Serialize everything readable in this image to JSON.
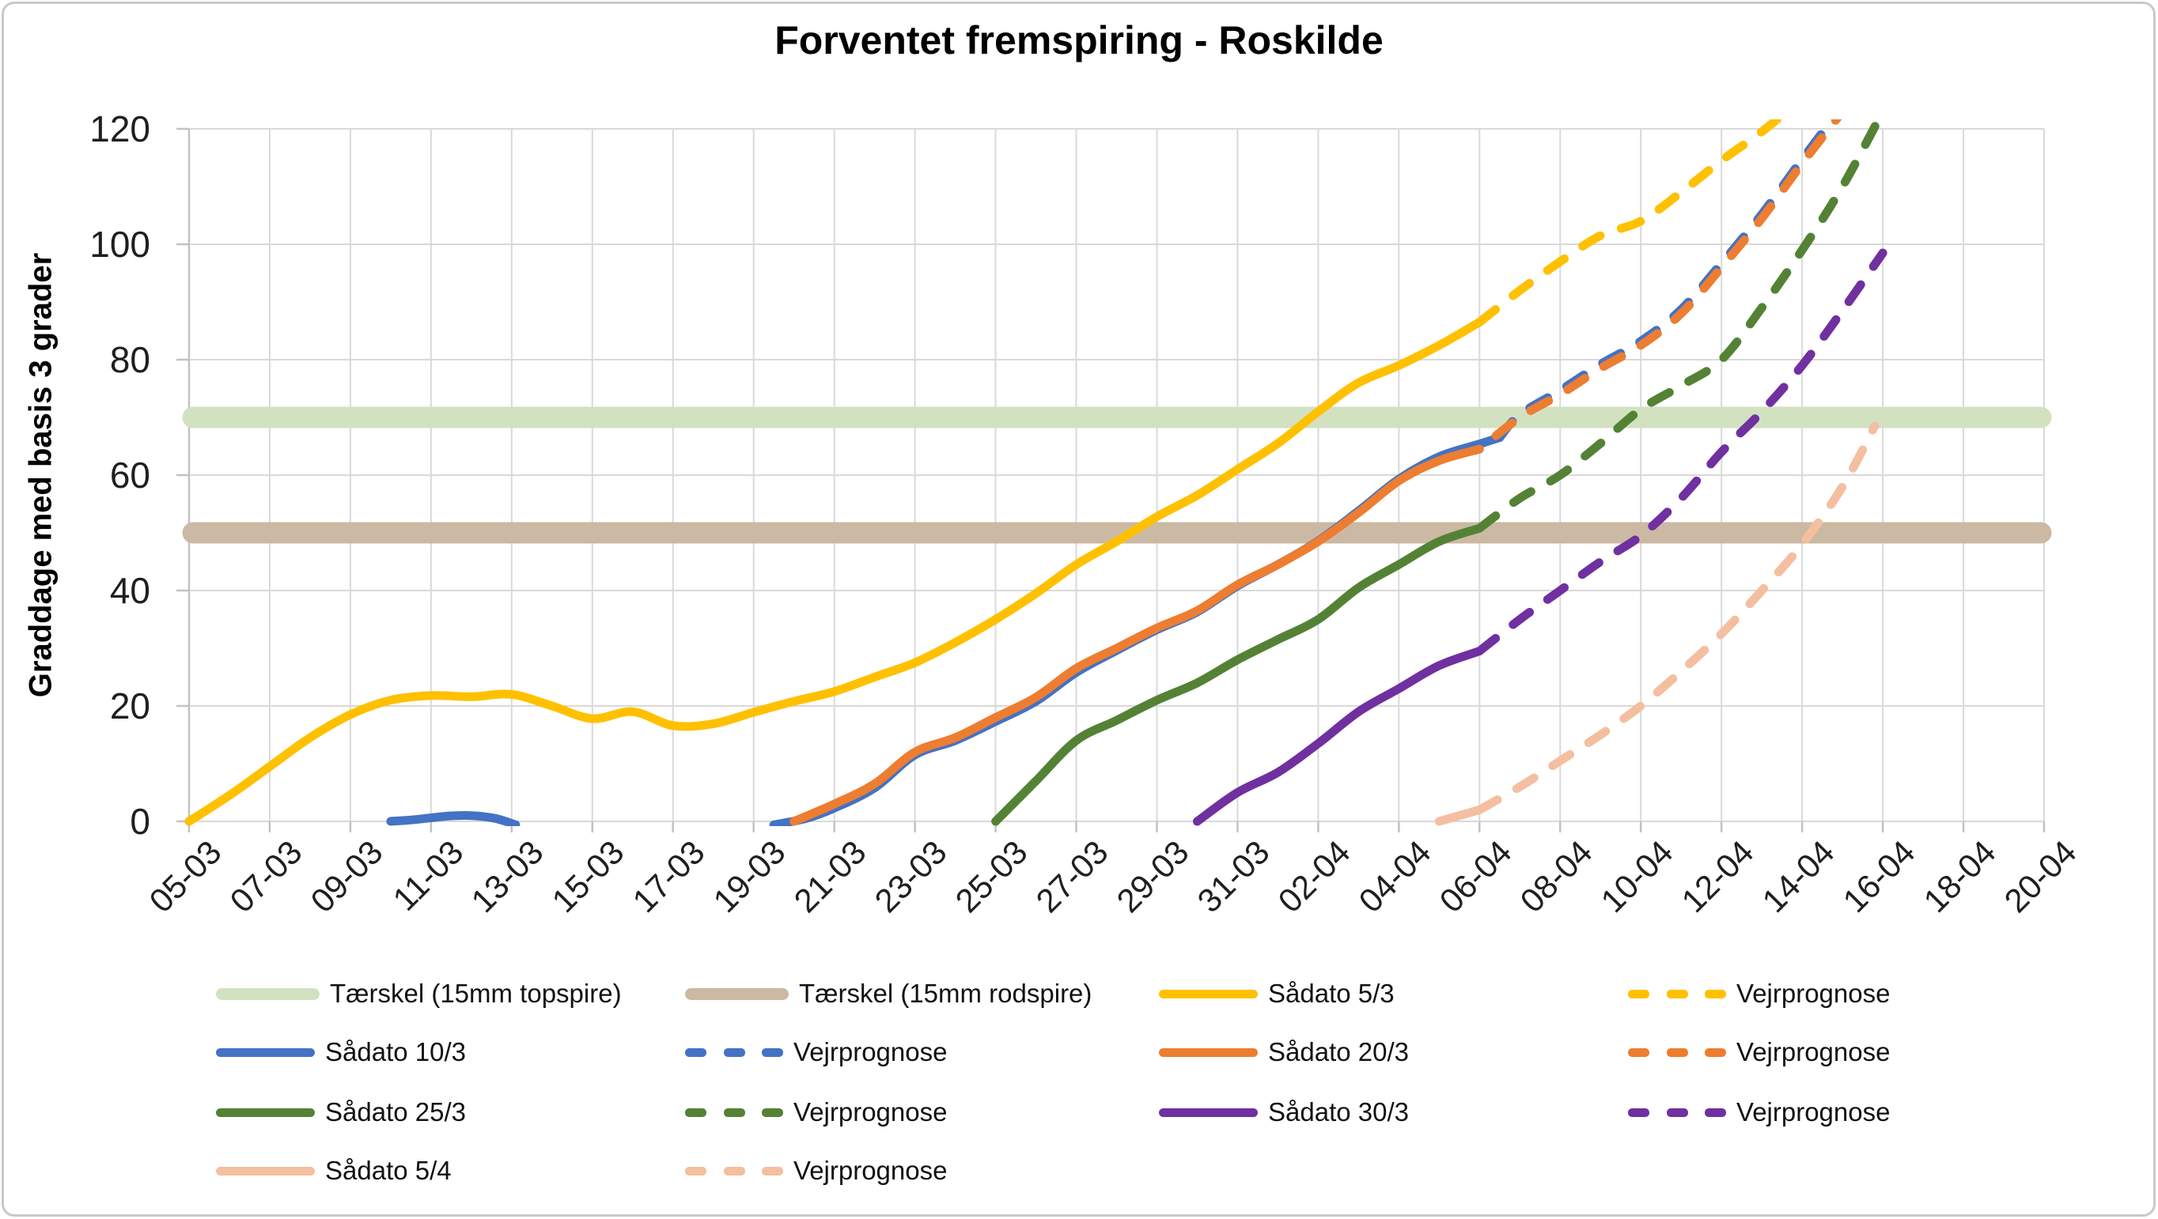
{
  "chart_data": {
    "type": "line",
    "title": "Forventet fremspiring - Roskilde",
    "ylabel": "Graddage med basis 3 grader",
    "ylim": [
      0,
      120
    ],
    "ytick_step": 20,
    "ytick_labels": [
      "0",
      "20",
      "40",
      "60",
      "80",
      "100",
      "120"
    ],
    "x_days_total": 46,
    "xtick_every_days": 2,
    "xtick_labels": [
      "05-03",
      "07-03",
      "09-03",
      "11-03",
      "13-03",
      "15-03",
      "17-03",
      "19-03",
      "21-03",
      "23-03",
      "25-03",
      "27-03",
      "29-03",
      "31-03",
      "02-04",
      "04-04",
      "06-04",
      "08-04",
      "10-04",
      "12-04",
      "14-04",
      "16-04",
      "18-04",
      "20-04"
    ],
    "grid": "both",
    "legend_position": "bottom",
    "style": {
      "grid_color": "#D9D9D9",
      "axis_color": "#C2C2C2",
      "text_color": "#1F1F1F",
      "frame_color": "#C9C9C9",
      "background": "#FFFFFF"
    },
    "thresholds": [
      {
        "name": "Tærskel (15mm topspire)",
        "value": 70,
        "color": "#D2E2C1"
      },
      {
        "name": "Tærskel (15mm rodspire)",
        "value": 50,
        "color": "#CBB9A3"
      }
    ],
    "series": [
      {
        "id": "saadato-5-3",
        "name": "Sådato 5/3",
        "color": "#FFC000",
        "style": "solid",
        "points": [
          [
            0,
            0
          ],
          [
            1,
            4.5
          ],
          [
            2,
            9.5
          ],
          [
            3,
            14.5
          ],
          [
            4,
            18.5
          ],
          [
            5,
            21
          ],
          [
            6,
            21.8
          ],
          [
            7,
            21.6
          ],
          [
            8,
            22
          ],
          [
            9,
            20
          ],
          [
            10,
            17.8
          ],
          [
            11,
            19
          ],
          [
            12,
            16.6
          ],
          [
            13,
            16.9
          ],
          [
            14,
            18.9
          ],
          [
            15,
            20.8
          ],
          [
            16,
            22.5
          ],
          [
            17,
            25
          ],
          [
            18,
            27.5
          ],
          [
            19,
            31
          ],
          [
            20,
            35
          ],
          [
            21,
            39.5
          ],
          [
            22,
            44.5
          ],
          [
            23,
            48.5
          ],
          [
            24,
            52.8
          ],
          [
            25,
            56.5
          ],
          [
            26,
            61
          ],
          [
            27,
            65.5
          ],
          [
            28,
            71
          ],
          [
            29,
            76
          ],
          [
            30,
            79
          ],
          [
            31,
            82.5
          ],
          [
            32,
            86.5
          ]
        ]
      },
      {
        "id": "prognose-5-3",
        "name": "Vejrprognose",
        "color": "#FFC000",
        "style": "dashed",
        "points": [
          [
            32,
            86.5
          ],
          [
            33,
            92
          ],
          [
            34,
            97
          ],
          [
            35,
            101.5
          ],
          [
            36,
            104
          ],
          [
            37,
            109
          ],
          [
            38,
            114.5
          ],
          [
            39,
            119.5
          ],
          [
            39.6,
            123
          ]
        ]
      },
      {
        "id": "saadato-10-3",
        "name": "Sådato 10/3",
        "color": "#4472C4",
        "style": "solid",
        "points": [
          [
            5,
            0
          ],
          [
            5.6,
            0.3
          ],
          [
            6.4,
            0.9
          ],
          [
            7,
            1
          ],
          [
            7.6,
            0.5
          ],
          [
            8.1,
            -0.6
          ],
          null,
          [
            14.5,
            -0.6
          ],
          [
            15.3,
            0.5
          ],
          [
            16,
            2.3
          ],
          [
            17,
            5.8
          ],
          [
            18,
            11.5
          ],
          [
            19,
            14
          ],
          [
            20,
            17.3
          ],
          [
            21,
            20.8
          ],
          [
            22,
            25.8
          ],
          [
            23,
            29.6
          ],
          [
            24,
            33.2
          ],
          [
            25,
            36.3
          ],
          [
            26,
            40.8
          ],
          [
            27,
            44.5
          ],
          [
            28,
            48.6
          ],
          [
            29,
            53.8
          ],
          [
            30,
            59.3
          ],
          [
            31,
            63.2
          ],
          [
            32,
            65.4
          ],
          [
            32.5,
            66.5
          ]
        ]
      },
      {
        "id": "prognose-10-3",
        "name": "Vejrprognose",
        "color": "#4472C4",
        "style": "dashed",
        "points": [
          [
            32.5,
            66.5
          ],
          [
            33,
            70.5
          ],
          [
            34,
            74.7
          ],
          [
            35,
            79.2
          ],
          [
            36,
            83.2
          ],
          [
            37,
            88.7
          ],
          [
            38,
            96.7
          ],
          [
            39,
            105.2
          ],
          [
            40,
            114.7
          ],
          [
            40.9,
            123
          ]
        ]
      },
      {
        "id": "saadato-20-3",
        "name": "Sådato 20/3",
        "color": "#ED7D31",
        "style": "solid",
        "points": [
          [
            15,
            0
          ],
          [
            16,
            3
          ],
          [
            17,
            6.5
          ],
          [
            18,
            12
          ],
          [
            19,
            14.5
          ],
          [
            20,
            18
          ],
          [
            21,
            21.5
          ],
          [
            22,
            26.5
          ],
          [
            23,
            30
          ],
          [
            24,
            33.5
          ],
          [
            25,
            36.5
          ],
          [
            26,
            41
          ],
          [
            27,
            44.5
          ],
          [
            28,
            48.5
          ],
          [
            29,
            53.5
          ],
          [
            30,
            59
          ],
          [
            31,
            62.5
          ],
          [
            32,
            64.5
          ]
        ]
      },
      {
        "id": "prognose-20-3",
        "name": "Vejrprognose",
        "color": "#ED7D31",
        "style": "dashed",
        "dash_offset": 27,
        "points": [
          [
            32,
            64.5
          ],
          [
            33,
            70
          ],
          [
            34,
            74
          ],
          [
            35,
            78.5
          ],
          [
            36,
            82.5
          ],
          [
            37,
            88
          ],
          [
            38,
            96
          ],
          [
            39,
            104.5
          ],
          [
            40,
            114
          ],
          [
            41,
            123
          ]
        ]
      },
      {
        "id": "saadato-25-3",
        "name": "Sådato 25/3",
        "color": "#548235",
        "style": "solid",
        "points": [
          [
            20,
            0
          ],
          [
            21,
            7
          ],
          [
            22,
            14
          ],
          [
            23,
            17.5
          ],
          [
            24,
            21
          ],
          [
            25,
            24
          ],
          [
            26,
            28
          ],
          [
            27,
            31.5
          ],
          [
            28,
            35
          ],
          [
            29,
            40.5
          ],
          [
            30,
            44.5
          ],
          [
            31,
            48.5
          ],
          [
            32,
            50.8
          ]
        ]
      },
      {
        "id": "prognose-25-3",
        "name": "Vejrprognose",
        "color": "#548235",
        "style": "dashed",
        "points": [
          [
            32,
            50.8
          ],
          [
            33,
            56
          ],
          [
            34,
            60
          ],
          [
            35,
            65.5
          ],
          [
            36,
            71.4
          ],
          [
            37,
            75.5
          ],
          [
            38,
            80
          ],
          [
            39,
            89
          ],
          [
            40,
            99
          ],
          [
            41,
            110
          ],
          [
            42,
            123
          ]
        ]
      },
      {
        "id": "saadato-30-3",
        "name": "Sådato 30/3",
        "color": "#7030A0",
        "style": "solid",
        "points": [
          [
            25,
            0
          ],
          [
            26,
            5
          ],
          [
            27,
            8.5
          ],
          [
            28,
            13.5
          ],
          [
            29,
            19
          ],
          [
            30,
            23
          ],
          [
            31,
            27
          ],
          [
            32,
            29.5
          ]
        ]
      },
      {
        "id": "prognose-30-3",
        "name": "Vejrprognose",
        "color": "#7030A0",
        "style": "dashed",
        "points": [
          [
            32,
            29.5
          ],
          [
            33,
            35
          ],
          [
            34,
            40
          ],
          [
            35,
            45
          ],
          [
            36,
            49.5
          ],
          [
            37,
            56
          ],
          [
            38,
            64
          ],
          [
            39,
            71
          ],
          [
            40,
            79
          ],
          [
            41,
            88.5
          ],
          [
            42,
            98.5
          ]
        ]
      },
      {
        "id": "saadato-5-4",
        "name": "Sådato 5/4",
        "color": "#F4BFA0",
        "style": "solid",
        "points": [
          [
            31,
            0
          ],
          [
            32,
            2
          ]
        ]
      },
      {
        "id": "prognose-5-4",
        "name": "Vejrprognose",
        "color": "#F4BFA0",
        "style": "dashed",
        "points": [
          [
            32,
            2
          ],
          [
            33,
            6
          ],
          [
            34,
            10.5
          ],
          [
            35,
            15
          ],
          [
            36,
            20
          ],
          [
            37,
            26
          ],
          [
            38,
            32.5
          ],
          [
            39,
            40
          ],
          [
            40,
            48
          ],
          [
            41,
            58
          ],
          [
            41.8,
            68.5
          ]
        ]
      }
    ],
    "legend": {
      "rows": [
        [
          {
            "label": "Tærskel (15mm topspire)",
            "swatch": "band",
            "color": "#D2E2C1"
          },
          {
            "label": "Tærskel (15mm rodspire)",
            "swatch": "band",
            "color": "#CBB9A3"
          },
          {
            "label": "Sådato 5/3",
            "swatch": "solid",
            "color": "#FFC000"
          },
          {
            "label": "Vejrprognose",
            "swatch": "dashed",
            "color": "#FFC000"
          }
        ],
        [
          {
            "label": "Sådato 10/3",
            "swatch": "solid",
            "color": "#4472C4"
          },
          {
            "label": "Vejrprognose",
            "swatch": "dashed",
            "color": "#4472C4"
          },
          {
            "label": "Sådato 20/3",
            "swatch": "solid",
            "color": "#ED7D31"
          },
          {
            "label": "Vejrprognose",
            "swatch": "dashed",
            "color": "#ED7D31"
          }
        ],
        [
          {
            "label": "Sådato 25/3",
            "swatch": "solid",
            "color": "#548235"
          },
          {
            "label": "Vejrprognose",
            "swatch": "dashed",
            "color": "#548235"
          },
          {
            "label": "Sådato 30/3",
            "swatch": "solid",
            "color": "#7030A0"
          },
          {
            "label": "Vejrprognose",
            "swatch": "dashed",
            "color": "#7030A0"
          }
        ],
        [
          {
            "label": "Sådato 5/4",
            "swatch": "solid",
            "color": "#F4BFA0"
          },
          {
            "label": "Vejrprognose",
            "swatch": "dashed",
            "color": "#F4BFA0"
          }
        ]
      ]
    }
  }
}
